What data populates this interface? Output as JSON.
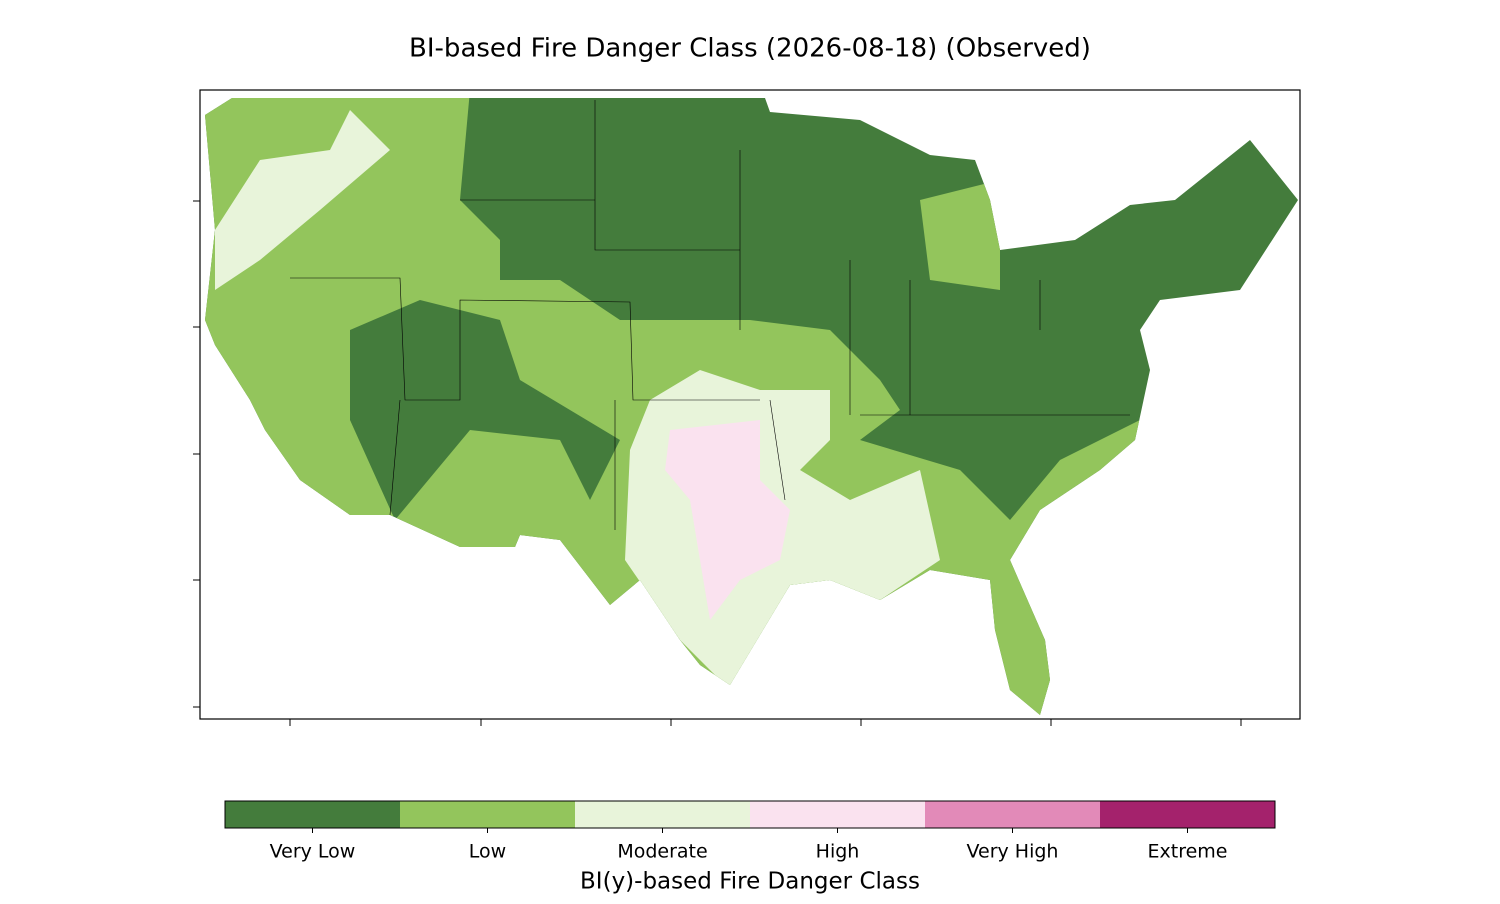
{
  "title": "BI-based Fire Danger Class (2026-08-18) (Observed)",
  "colorbar": {
    "label": "BI(y)-based Fire Danger Class",
    "classes": [
      {
        "name": "Very Low",
        "color": "#447c3c"
      },
      {
        "name": "Low",
        "color": "#93c55c"
      },
      {
        "name": "Moderate",
        "color": "#e8f4da"
      },
      {
        "name": "High",
        "color": "#fae2ef"
      },
      {
        "name": "Very High",
        "color": "#e28ab8"
      },
      {
        "name": "Extreme",
        "color": "#a4226c"
      }
    ]
  }
}
